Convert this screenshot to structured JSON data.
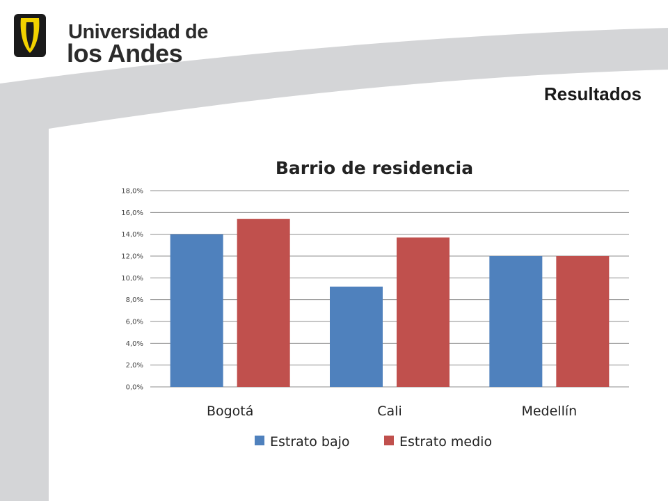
{
  "header": {
    "logo_line1": "Universidad de",
    "logo_line2": "los Andes",
    "slide_title": "Resultados"
  },
  "colors": {
    "series1": "#4F81BD",
    "series2": "#C0504D",
    "gridline": "#8c8c8c",
    "swoosh": "#d4d5d7"
  },
  "chart_data": {
    "type": "bar",
    "title": "Barrio de residencia",
    "categories": [
      "Bogotá",
      "Cali",
      "Medellín"
    ],
    "series": [
      {
        "name": "Estrato bajo",
        "values": [
          14.0,
          9.2,
          12.0
        ]
      },
      {
        "name": "Estrato medio",
        "values": [
          15.4,
          13.7,
          12.0
        ]
      }
    ],
    "ylim": [
      0,
      18
    ],
    "yticks": [
      "0,0%",
      "2,0%",
      "4,0%",
      "6,0%",
      "8,0%",
      "10,0%",
      "12,0%",
      "14,0%",
      "16,0%",
      "18,0%"
    ],
    "grid": true,
    "legend": "bottom"
  }
}
